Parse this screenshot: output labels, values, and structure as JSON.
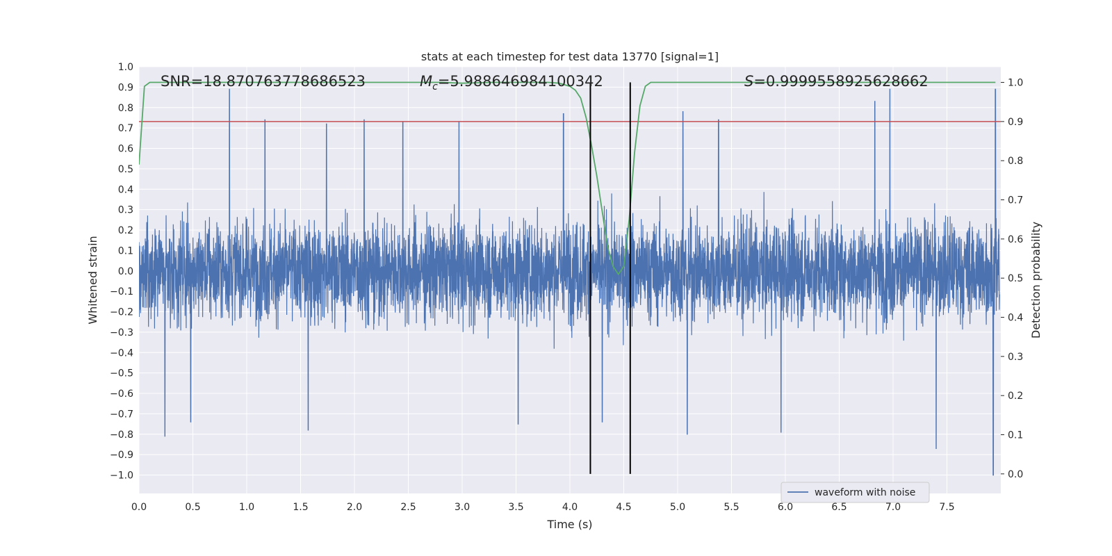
{
  "chart_data": {
    "type": "line",
    "title": "stats at each timestep for test data 13770 [signal=1]",
    "xlabel": "Time (s)",
    "ylabel": "Whitened strain",
    "ylabel_right": "Detection probability",
    "xlim": [
      0.0,
      8.0
    ],
    "ylim": [
      -1.09,
      1.0
    ],
    "ylim_right": [
      -0.05,
      1.04
    ],
    "x_ticks": [
      "0.0",
      "0.5",
      "1.0",
      "1.5",
      "2.0",
      "2.5",
      "3.0",
      "3.5",
      "4.0",
      "4.5",
      "5.0",
      "5.5",
      "6.0",
      "6.5",
      "7.0",
      "7.5"
    ],
    "y_ticks": [
      "1.0",
      "0.9",
      "0.8",
      "0.7",
      "0.6",
      "0.5",
      "0.4",
      "0.3",
      "0.2",
      "0.1",
      "0.0",
      "−0.1",
      "−0.2",
      "−0.3",
      "−0.4",
      "−0.5",
      "−0.6",
      "−0.7",
      "−0.8",
      "−0.9",
      "−1.0"
    ],
    "y_ticks_right": [
      "1.0",
      "0.9",
      "0.8",
      "0.7",
      "0.6",
      "0.5",
      "0.4",
      "0.3",
      "0.2",
      "0.1",
      "0.0"
    ],
    "grid": true,
    "legend_position": "lower right",
    "series": [
      {
        "name": "waveform with noise",
        "color": "#4c72b0",
        "axis": "left",
        "note_style": "dense noise trace, sampled 4096 Hz over 8 s",
        "peaks_upper": [
          [
            0.84,
            0.89
          ],
          [
            1.17,
            0.74
          ],
          [
            1.74,
            0.72
          ],
          [
            2.09,
            0.74
          ],
          [
            2.45,
            0.73
          ],
          [
            2.97,
            0.73
          ],
          [
            3.94,
            0.77
          ],
          [
            5.05,
            0.78
          ],
          [
            5.38,
            0.74
          ],
          [
            6.83,
            0.83
          ],
          [
            6.97,
            0.89
          ],
          [
            7.95,
            0.89
          ]
        ],
        "peaks_lower": [
          [
            0.24,
            -0.81
          ],
          [
            0.48,
            -0.74
          ],
          [
            1.57,
            -0.78
          ],
          [
            3.52,
            -0.75
          ],
          [
            4.3,
            -0.74
          ],
          [
            5.09,
            -0.8
          ],
          [
            5.96,
            -0.79
          ],
          [
            7.4,
            -0.87
          ],
          [
            7.93,
            -1.0
          ]
        ],
        "typical_envelope": [
          -0.42,
          0.48
        ]
      },
      {
        "name": "detection probability",
        "color": "#55a868",
        "axis": "right",
        "x": [
          0.0,
          0.05,
          0.1,
          0.15,
          0.2,
          0.5,
          1.0,
          1.5,
          2.0,
          2.5,
          2.8,
          3.0,
          3.3,
          3.5,
          3.8,
          3.9,
          4.0,
          4.05,
          4.1,
          4.15,
          4.2,
          4.25,
          4.3,
          4.35,
          4.4,
          4.45,
          4.5,
          4.55,
          4.6,
          4.65,
          4.7,
          4.75,
          4.8,
          5.0,
          6.0,
          7.0,
          7.95
        ],
        "y": [
          0.79,
          0.99,
          1.0,
          1.0,
          1.0,
          1.0,
          1.0,
          1.0,
          1.0,
          1.0,
          1.0,
          0.998,
          1.0,
          1.0,
          1.0,
          0.998,
          0.99,
          0.98,
          0.96,
          0.91,
          0.84,
          0.76,
          0.67,
          0.58,
          0.53,
          0.51,
          0.53,
          0.65,
          0.82,
          0.94,
          0.99,
          1.0,
          1.0,
          1.0,
          1.0,
          1.0,
          1.0
        ]
      }
    ],
    "hlines": [
      {
        "axis": "right",
        "y": 0.9,
        "color": "#c44e52"
      }
    ],
    "vlines": [
      {
        "x": 4.19,
        "color": "#000000"
      },
      {
        "x": 4.56,
        "color": "#000000"
      }
    ],
    "annotations": {
      "snr": "SNR=18.870763778686523",
      "mc_symbol": "M",
      "mc_sub": "c",
      "mc_value": "=5.988646984100342",
      "s_symbol": "S",
      "s_value": "=0.9999558925628662"
    }
  }
}
